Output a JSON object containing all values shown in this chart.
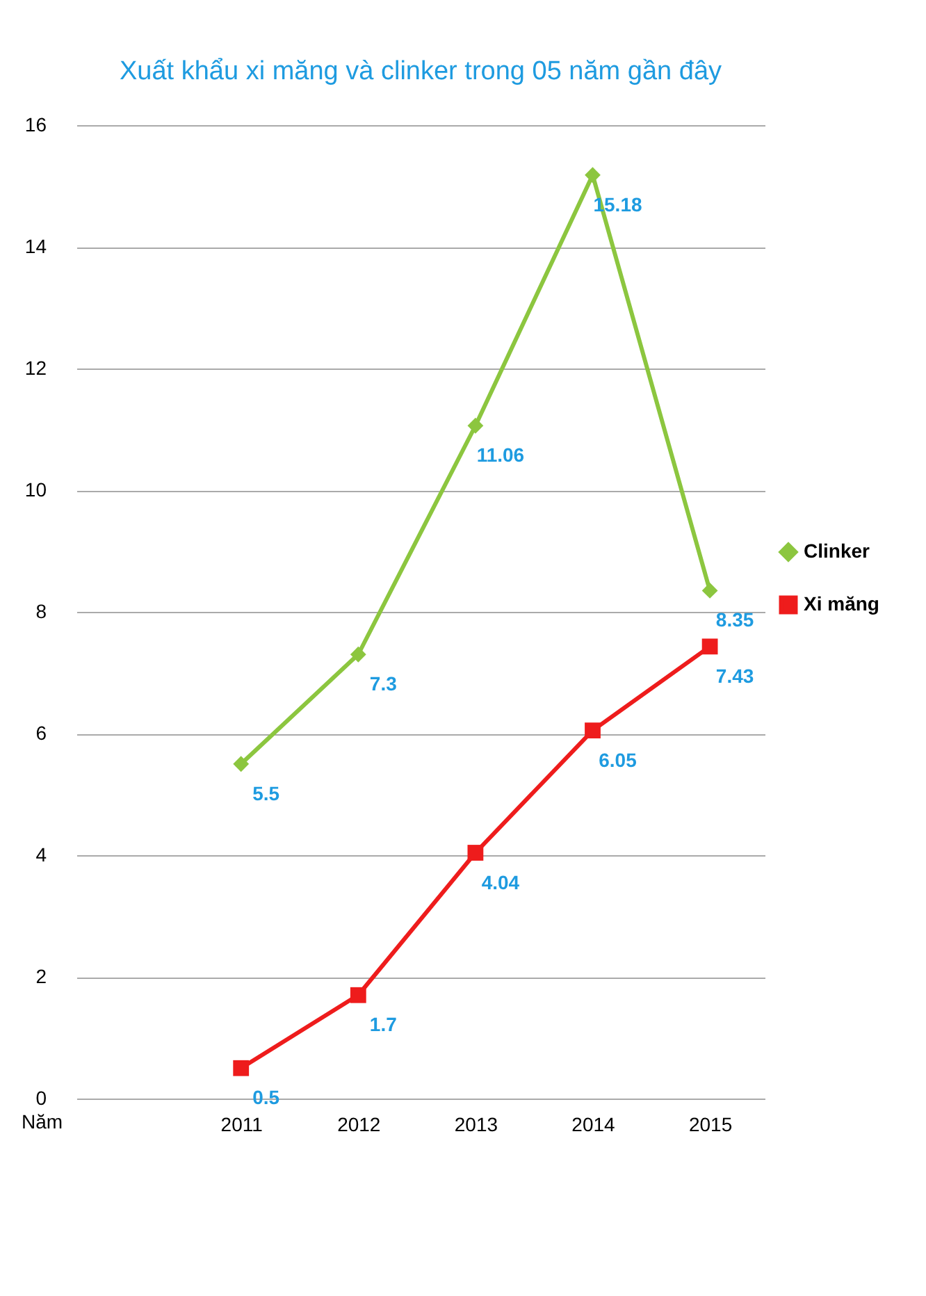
{
  "chart_data": {
    "type": "line",
    "title": "Xuất khẩu xi măng và clinker trong 05 năm gần đây",
    "xlabel": "Năm",
    "categories": [
      "2011",
      "2012",
      "2013",
      "2014",
      "2015"
    ],
    "series": [
      {
        "name": "Clinker",
        "color": "#8cc63f",
        "marker": "diamond",
        "values": [
          5.5,
          7.3,
          11.06,
          15.18,
          8.35
        ]
      },
      {
        "name": "Xi măng",
        "color": "#ee1c1c",
        "marker": "square",
        "values": [
          0.5,
          1.7,
          4.04,
          6.05,
          7.43
        ]
      }
    ],
    "ylim": [
      0,
      16
    ],
    "yticks": [
      0,
      2,
      4,
      6,
      8,
      10,
      12,
      14,
      16
    ],
    "grid": "y",
    "legend": "right",
    "data_labels": true,
    "line_style": "solid"
  }
}
